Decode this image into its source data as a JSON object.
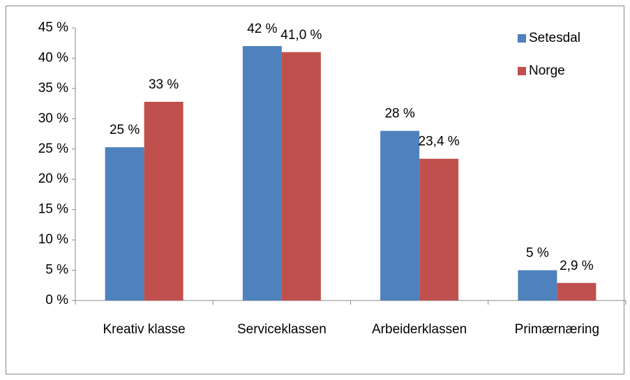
{
  "chart_data": {
    "type": "bar",
    "categories": [
      "Kreativ klasse",
      "Serviceklassen",
      "Arbeiderklassen",
      "Primærnæring"
    ],
    "series": [
      {
        "name": "Setesdal",
        "color": "#4f81bd",
        "values": [
          25.3,
          42.0,
          28.0,
          5.0
        ],
        "value_labels": [
          "25 %",
          "42 %",
          "28 %",
          "5 %"
        ]
      },
      {
        "name": "Norge",
        "color": "#c0504d",
        "values": [
          32.8,
          41.0,
          23.4,
          2.9
        ],
        "value_labels": [
          "33 %",
          "41,0 %",
          "23,4 %",
          "2,9 %"
        ]
      }
    ],
    "ylim": [
      0,
      45
    ],
    "yticks": [
      {
        "value": 0,
        "label": "0 %"
      },
      {
        "value": 5,
        "label": "5 %"
      },
      {
        "value": 10,
        "label": "10 %"
      },
      {
        "value": 15,
        "label": "15 %"
      },
      {
        "value": 20,
        "label": "20 %"
      },
      {
        "value": 25,
        "label": "25 %"
      },
      {
        "value": 30,
        "label": "30 %"
      },
      {
        "value": 35,
        "label": "35 %"
      },
      {
        "value": 40,
        "label": "40 %"
      },
      {
        "value": 45,
        "label": "45 %"
      }
    ],
    "grid": false,
    "legend": "top-right"
  }
}
